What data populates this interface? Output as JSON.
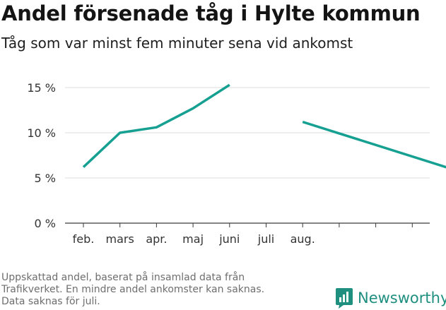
{
  "header": {
    "title": "Andel försenade tåg i Hylte kommun",
    "subtitle": "Tåg som var minst fem minuter sena vid ankomst"
  },
  "footnote": {
    "lines": [
      "Uppskattad andel, baserat på insamlad data från",
      "Trafikverket. En mindre andel ankomster kan saknas.",
      "Data saknas för juli."
    ]
  },
  "brand": {
    "name": "Newsworthy",
    "icon": "newsworthy-logo-icon",
    "color": "#1f8f80"
  },
  "chart_data": {
    "type": "line",
    "categories": [
      "feb.",
      "mars",
      "apr.",
      "maj",
      "juni",
      "juli",
      "aug.",
      "",
      "",
      "",
      ""
    ],
    "series": [
      {
        "color": "#16a091",
        "values": [
          6.2,
          10.0,
          10.6,
          12.7,
          15.3,
          null,
          11.2,
          null,
          null,
          null,
          6.1
        ]
      }
    ],
    "ylim": [
      0,
      15
    ],
    "yticks": [
      0,
      5,
      10,
      15
    ],
    "ytick_labels": [
      "0 %",
      "5 %",
      "10 %",
      "15 %"
    ],
    "grid": true,
    "xlabel": "",
    "ylabel": ""
  }
}
